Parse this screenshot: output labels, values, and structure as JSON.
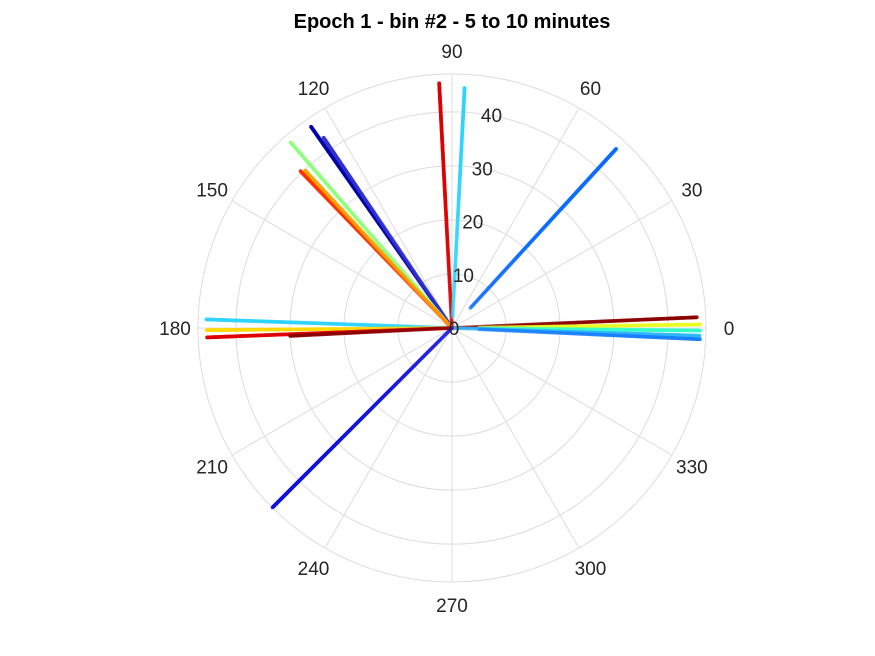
{
  "chart_data": {
    "type": "scatter",
    "projection": "polar",
    "title": "Epoch 1 - bin #2 - 5 to 10 minutes",
    "theta_unit": "degrees",
    "theta_zero": "right",
    "theta_direction": "counterclockwise",
    "rlim": [
      0,
      47
    ],
    "r_ticks": [
      0,
      10,
      20,
      30,
      40
    ],
    "theta_ticks": [
      0,
      30,
      60,
      90,
      120,
      150,
      180,
      210,
      240,
      270,
      300,
      330
    ],
    "grid": true,
    "colormap": "jet",
    "series": [
      {
        "theta": 93,
        "r": [
          0,
          45.5
        ],
        "color": "#dd0000",
        "density": 1.3
      },
      {
        "theta": 87,
        "r": [
          2,
          44.5
        ],
        "color": "#2dd4ff",
        "density": 1.0
      },
      {
        "theta": 47.5,
        "r": [
          5,
          45
        ],
        "color": "#0a6cff",
        "density": 1.3
      },
      {
        "theta": 2.5,
        "r": [
          0,
          45.5
        ],
        "color": "#8b0000",
        "density": 1.0
      },
      {
        "theta": 0.8,
        "r": [
          5,
          46
        ],
        "color": "#e8ff20",
        "density": 1.0
      },
      {
        "theta": -0.6,
        "r": [
          5,
          46
        ],
        "color": "#30ffc8",
        "density": 1.0
      },
      {
        "theta": -1.8,
        "r": [
          0,
          46
        ],
        "color": "#30b8ff",
        "density": 1.2
      },
      {
        "theta": -2.6,
        "r": [
          5,
          46
        ],
        "color": "#1a7fff",
        "density": 1.0
      },
      {
        "theta": 125,
        "r": [
          0,
          45.5
        ],
        "color": "#0000a8",
        "density": 1.2
      },
      {
        "theta": 124,
        "r": [
          0,
          42.5
        ],
        "color": "#3030d0",
        "density": 1.0
      },
      {
        "theta": 131,
        "r": [
          0,
          45.5
        ],
        "color": "#90ff80",
        "density": 1.2
      },
      {
        "theta": 134,
        "r": [
          0,
          40.5
        ],
        "color": "#ff3000",
        "density": 1.2
      },
      {
        "theta": 133,
        "r": [
          0,
          40
        ],
        "color": "#ffa000",
        "density": 1.0
      },
      {
        "theta": 178,
        "r": [
          0,
          45.5
        ],
        "color": "#2dd4ff",
        "density": 1.2
      },
      {
        "theta": 180.5,
        "r": [
          0,
          45.5
        ],
        "color": "#ffd800",
        "density": 1.1
      },
      {
        "theta": 182.2,
        "r": [
          0,
          45.5
        ],
        "color": "#e00000",
        "density": 1.3
      },
      {
        "theta": 182.8,
        "r": [
          0,
          30
        ],
        "color": "#8b0000",
        "density": 0.8
      },
      {
        "theta": 225,
        "r": [
          0,
          47
        ],
        "color": "#1010e0",
        "density": 1.2
      }
    ]
  }
}
